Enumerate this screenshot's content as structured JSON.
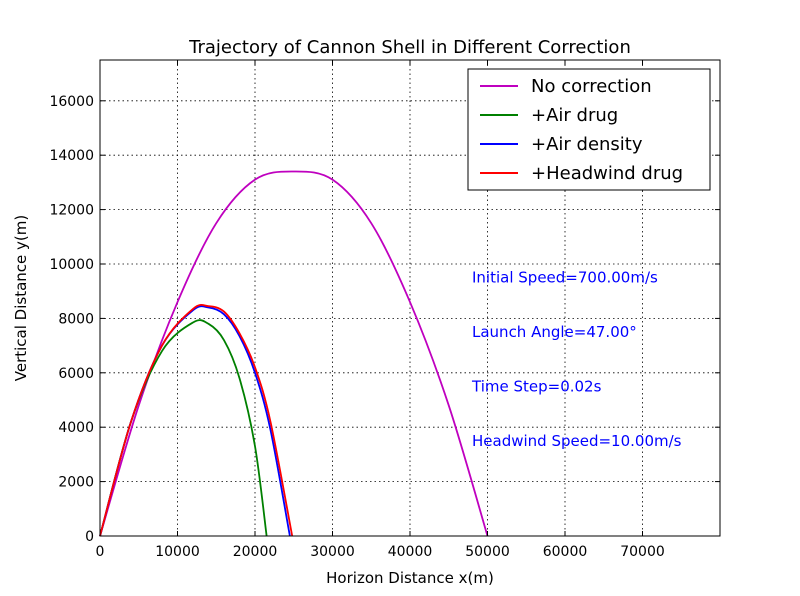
{
  "chart_data": {
    "type": "line",
    "title": "Trajectory of Cannon Shell in Different Correction",
    "xlabel": "Horizon Distance x(m)",
    "ylabel": "Vertical Distance y(m)",
    "xlim": [
      0,
      80000
    ],
    "ylim": [
      0,
      17500
    ],
    "x_ticks": [
      "0",
      "10000",
      "20000",
      "30000",
      "40000",
      "50000",
      "60000",
      "70000"
    ],
    "y_ticks": [
      "0",
      "2000",
      "4000",
      "6000",
      "8000",
      "10000",
      "12000",
      "14000",
      "16000"
    ],
    "grid": true,
    "legend_position": "top-right",
    "series": [
      {
        "name": "No correction",
        "color": "#bf00bf",
        "x": [
          0,
          5000,
          10000,
          15000,
          20000,
          25000,
          30000,
          35000,
          40000,
          45000,
          50000
        ],
        "y": [
          0,
          4800,
          8600,
          11500,
          13100,
          13400,
          13100,
          11500,
          8600,
          4800,
          0
        ]
      },
      {
        "name": "+Air drug",
        "color": "#008000",
        "x": [
          0,
          4000,
          8000,
          12000,
          14000,
          16000,
          18000,
          20000,
          21500
        ],
        "y": [
          0,
          4200,
          6800,
          7850,
          7800,
          7200,
          5800,
          3300,
          0
        ]
      },
      {
        "name": "+Air density",
        "color": "#0000ff",
        "x": [
          0,
          4000,
          8000,
          12000,
          14000,
          16000,
          18000,
          20000,
          22000,
          24500
        ],
        "y": [
          0,
          4200,
          7000,
          8300,
          8400,
          8150,
          7350,
          6000,
          3900,
          0
        ]
      },
      {
        "name": "+Headwind drug",
        "color": "#ff0000",
        "x": [
          0,
          4000,
          8000,
          12000,
          14000,
          16000,
          18000,
          20000,
          22000,
          24800
        ],
        "y": [
          0,
          4200,
          7000,
          8350,
          8450,
          8250,
          7450,
          6200,
          4200,
          0
        ]
      }
    ],
    "annotations": [
      {
        "text": "Initial Speed=700.00m/s",
        "x": 48000,
        "y": 9500,
        "color": "#0000ff"
      },
      {
        "text": "Launch Angle=47.00°",
        "x": 48000,
        "y": 7500,
        "color": "#0000ff"
      },
      {
        "text": "Time Step=0.02s",
        "x": 48000,
        "y": 5500,
        "color": "#0000ff"
      },
      {
        "text": "Headwind Speed=10.00m/s",
        "x": 48000,
        "y": 3500,
        "color": "#0000ff"
      }
    ]
  }
}
